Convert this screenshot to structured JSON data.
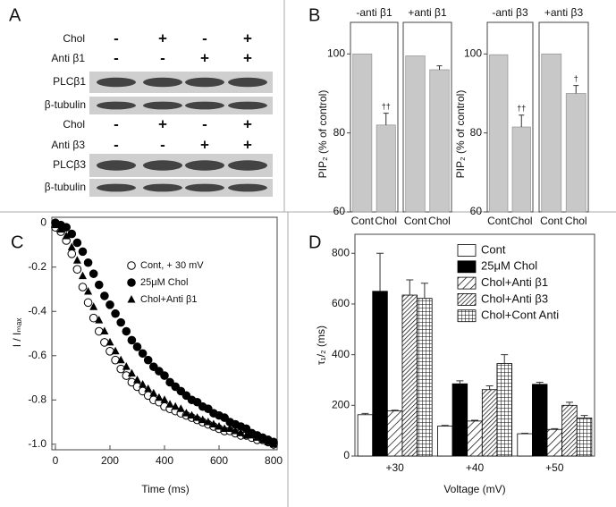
{
  "blot_panel": {
    "panel_label": "A",
    "groups": [
      {
        "conditions": [
          {
            "label": "Chol",
            "signs": [
              "-",
              "+",
              "-",
              "+"
            ]
          },
          {
            "label": "Anti β1",
            "signs": [
              "-",
              "-",
              "+",
              "+"
            ]
          }
        ],
        "blots": [
          "PLCβ1",
          "β-tubulin"
        ]
      },
      {
        "conditions": [
          {
            "label": "Chol",
            "signs": [
              "-",
              "+",
              "-",
              "+"
            ]
          },
          {
            "label": "Anti β3",
            "signs": [
              "-",
              "-",
              "+",
              "+"
            ]
          }
        ],
        "blots": [
          "PLCβ3",
          "β-tubulin"
        ]
      }
    ]
  },
  "chart_data": [
    {
      "type": "bar",
      "panel_label": "B",
      "title": "-anti β1",
      "y_label": "PIP₂ (% of control)",
      "categories": [
        "Cont",
        "Chol"
      ],
      "values": [
        100,
        82
      ],
      "errors": [
        null,
        3
      ],
      "markers": [
        null,
        "††"
      ],
      "color": "#c8c8c8",
      "ylim": [
        60,
        108
      ],
      "yticks": [
        60,
        80,
        100
      ]
    },
    {
      "type": "bar",
      "title": "+anti β1",
      "categories": [
        "Cont",
        "Chol"
      ],
      "values": [
        99.5,
        96
      ],
      "errors": [
        null,
        1
      ],
      "color": "#c8c8c8",
      "ylim": [
        60,
        108
      ]
    },
    {
      "type": "bar",
      "title": "-anti β3",
      "y_label": "PIP₂ (% of control)",
      "categories": [
        "Cont",
        "Chol"
      ],
      "values": [
        99.8,
        81.5
      ],
      "errors": [
        null,
        3
      ],
      "markers": [
        null,
        "††"
      ],
      "color": "#c8c8c8",
      "ylim": [
        60,
        108
      ],
      "yticks": [
        60,
        80,
        100
      ]
    },
    {
      "type": "bar",
      "title": "+anti β3",
      "categories": [
        "Cont",
        "Chol"
      ],
      "values": [
        100,
        90
      ],
      "errors": [
        null,
        2
      ],
      "markers": [
        null,
        "†"
      ],
      "color": "#c8c8c8",
      "ylim": [
        60,
        108
      ]
    },
    {
      "type": "scatter",
      "panel_label": "C",
      "x_label": "Time (ms)",
      "y_label": "I / Iₘₐₓ",
      "x": [
        0,
        20,
        40,
        60,
        80,
        100,
        120,
        140,
        160,
        180,
        200,
        220,
        240,
        260,
        280,
        300,
        320,
        340,
        360,
        380,
        400,
        420,
        440,
        460,
        480,
        500,
        520,
        540,
        560,
        580,
        600,
        620,
        640,
        660,
        680,
        700,
        720,
        740,
        760,
        780,
        800
      ],
      "series": [
        {
          "name": "Cont, + 30 mV",
          "marker": "open-circle",
          "color": "#000000",
          "values": [
            -0.02,
            -0.04,
            -0.08,
            -0.14,
            -0.21,
            -0.29,
            -0.36,
            -0.43,
            -0.49,
            -0.54,
            -0.58,
            -0.62,
            -0.66,
            -0.69,
            -0.72,
            -0.74,
            -0.76,
            -0.78,
            -0.8,
            -0.81,
            -0.83,
            -0.84,
            -0.85,
            -0.86,
            -0.87,
            -0.88,
            -0.89,
            -0.9,
            -0.91,
            -0.92,
            -0.93,
            -0.94,
            -0.94,
            -0.95,
            -0.96,
            -0.96,
            -0.97,
            -0.98,
            -0.98,
            -0.99,
            -1.0
          ]
        },
        {
          "name": "25μM Chol",
          "marker": "filled-circle",
          "color": "#000000",
          "values": [
            0,
            -0.01,
            -0.02,
            -0.05,
            -0.09,
            -0.13,
            -0.18,
            -0.23,
            -0.28,
            -0.33,
            -0.37,
            -0.41,
            -0.45,
            -0.49,
            -0.53,
            -0.56,
            -0.59,
            -0.62,
            -0.65,
            -0.67,
            -0.69,
            -0.72,
            -0.74,
            -0.76,
            -0.78,
            -0.8,
            -0.81,
            -0.83,
            -0.84,
            -0.86,
            -0.87,
            -0.88,
            -0.9,
            -0.91,
            -0.92,
            -0.93,
            -0.95,
            -0.96,
            -0.97,
            -0.98,
            -0.99
          ]
        },
        {
          "name": "Chol+Anti β1",
          "marker": "triangle",
          "color": "#000000",
          "values": [
            -0.01,
            -0.03,
            -0.06,
            -0.11,
            -0.17,
            -0.24,
            -0.31,
            -0.38,
            -0.44,
            -0.49,
            -0.54,
            -0.58,
            -0.62,
            -0.65,
            -0.68,
            -0.71,
            -0.73,
            -0.75,
            -0.77,
            -0.79,
            -0.8,
            -0.82,
            -0.83,
            -0.84,
            -0.86,
            -0.87,
            -0.88,
            -0.89,
            -0.9,
            -0.91,
            -0.92,
            -0.93,
            -0.93,
            -0.94,
            -0.95,
            -0.96,
            -0.96,
            -0.97,
            -0.98,
            -0.99,
            -1.0
          ]
        }
      ],
      "xlim": [
        -13,
        813
      ],
      "ylim": [
        -1.025,
        0.025
      ],
      "xticks": [
        0,
        200,
        400,
        600,
        800
      ],
      "yticks": [
        0,
        -0.2,
        -0.4,
        -0.6,
        -0.8,
        {
          "value": -1,
          "label": "-1.0"
        }
      ]
    },
    {
      "type": "bar",
      "panel_label": "D",
      "x_label": "Voltage (mV)",
      "y_label": "τ₁/₂ (ms)",
      "categories": [
        "+30",
        "+40",
        "+50"
      ],
      "series": [
        {
          "name": "Cont",
          "color": "#ffffff",
          "hatch": "none",
          "values": [
            163,
            118,
            88
          ],
          "errors": [
            5,
            3,
            2
          ]
        },
        {
          "name": "25μM Chol",
          "color": "#000000",
          "hatch": "none",
          "values": [
            650,
            285,
            283
          ],
          "errors": [
            150,
            12,
            8
          ]
        },
        {
          "name": "Chol+Anti β1",
          "color": "#ffffff",
          "hatch": "sparse-diagonal",
          "values": [
            178,
            138,
            105
          ],
          "errors": [
            3,
            3,
            3
          ]
        },
        {
          "name": "Chol+Anti β3",
          "color": "#ffffff",
          "hatch": "dense-diagonal",
          "values": [
            635,
            262,
            200
          ],
          "errors": [
            60,
            15,
            12
          ]
        },
        {
          "name": "Chol+Cont Anti",
          "color": "#ffffff",
          "hatch": "grid",
          "values": [
            622,
            365,
            150
          ],
          "errors": [
            60,
            35,
            10
          ]
        }
      ],
      "ylim": [
        0,
        875
      ],
      "yticks": [
        0,
        200,
        400,
        600,
        800
      ]
    }
  ]
}
